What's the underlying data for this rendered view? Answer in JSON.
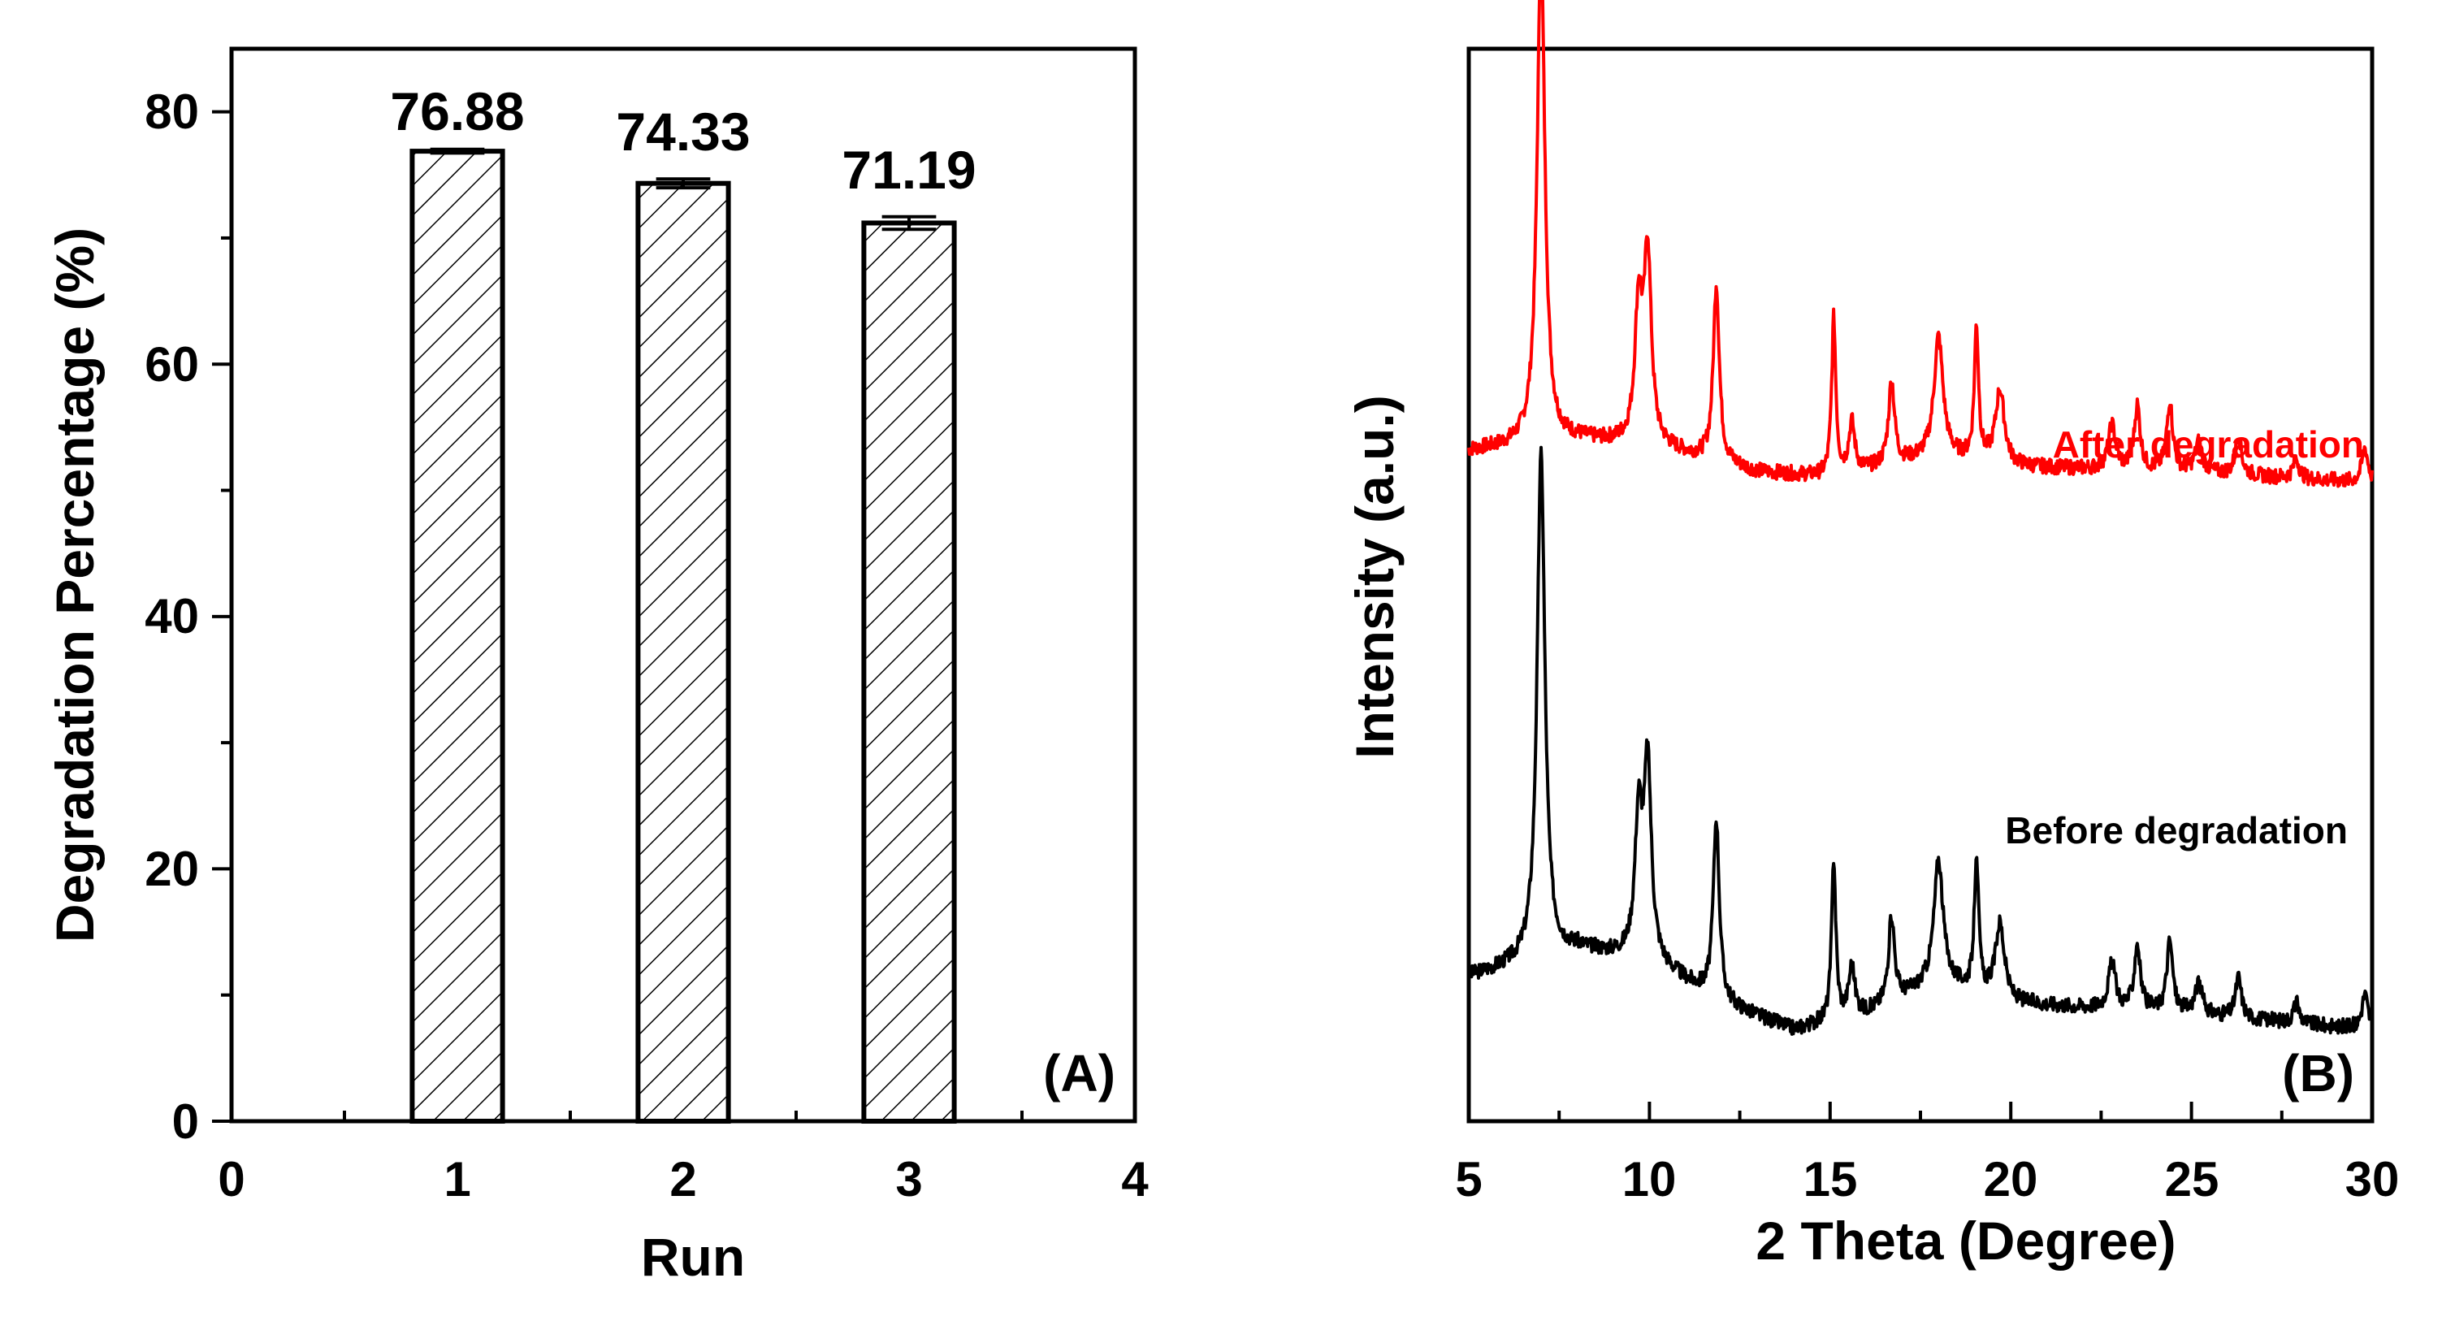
{
  "chart_data": [
    {
      "type": "bar",
      "panel_label": "(A)",
      "xlabel": "Run",
      "ylabel": "Degradation Percentage (%)",
      "xlim": [
        0,
        4
      ],
      "ylim": [
        0,
        85
      ],
      "x_ticks": [
        "0",
        "1",
        "2",
        "3",
        "4"
      ],
      "y_ticks": [
        "0",
        "20",
        "40",
        "60",
        "80"
      ],
      "categories": [
        1,
        2,
        3
      ],
      "values": [
        76.88,
        74.33,
        71.19
      ],
      "errors": [
        0.15,
        0.35,
        0.5
      ],
      "value_labels": [
        "76.88",
        "74.33",
        "71.19"
      ],
      "bar_fill": "hatched",
      "grid": false
    },
    {
      "type": "line",
      "panel_label": "(B)",
      "xlabel": "2 Theta (Degree)",
      "ylabel": "Intensity (a.u.)",
      "xlim": [
        5,
        30
      ],
      "ylim": [
        0,
        100
      ],
      "x_ticks": [
        "5",
        "10",
        "15",
        "20",
        "25",
        "30"
      ],
      "y_ticks_shown": false,
      "grid": false,
      "peaks": [
        {
          "x": 7.0,
          "h": 1.0,
          "w": 0.13
        },
        {
          "x": 9.7,
          "h": 0.27,
          "w": 0.12
        },
        {
          "x": 9.95,
          "h": 0.38,
          "w": 0.12
        },
        {
          "x": 11.85,
          "h": 0.36,
          "w": 0.1
        },
        {
          "x": 15.1,
          "h": 0.32,
          "w": 0.07
        },
        {
          "x": 15.6,
          "h": 0.1,
          "w": 0.1
        },
        {
          "x": 16.7,
          "h": 0.17,
          "w": 0.1
        },
        {
          "x": 18.0,
          "h": 0.24,
          "w": 0.15
        },
        {
          "x": 19.05,
          "h": 0.27,
          "w": 0.07
        },
        {
          "x": 19.7,
          "h": 0.15,
          "w": 0.15
        },
        {
          "x": 22.8,
          "h": 0.09,
          "w": 0.12
        },
        {
          "x": 23.5,
          "h": 0.13,
          "w": 0.1
        },
        {
          "x": 24.4,
          "h": 0.14,
          "w": 0.1
        },
        {
          "x": 25.2,
          "h": 0.06,
          "w": 0.12
        },
        {
          "x": 26.3,
          "h": 0.08,
          "w": 0.1
        },
        {
          "x": 27.9,
          "h": 0.04,
          "w": 0.1
        },
        {
          "x": 29.8,
          "h": 0.07,
          "w": 0.1
        }
      ],
      "series": [
        {
          "name": "After degradation",
          "color": "#ff0000",
          "baseline": [
            [
              5,
              62.5
            ],
            [
              8,
              63.5
            ],
            [
              10,
              63.0
            ],
            [
              13,
              60.5
            ],
            [
              15,
              60.0
            ],
            [
              18,
              62.0
            ],
            [
              20,
              61.0
            ],
            [
              25,
              60.5
            ],
            [
              30,
              59.5
            ]
          ],
          "peak_scale": 46,
          "seed": 7
        },
        {
          "name": "Before degradation",
          "color": "#000000",
          "baseline": [
            [
              5,
              13.5
            ],
            [
              8,
              16.0
            ],
            [
              10,
              15.0
            ],
            [
              12,
              11.0
            ],
            [
              14,
              8.5
            ],
            [
              16,
              10.0
            ],
            [
              18,
              13.0
            ],
            [
              20,
              11.0
            ],
            [
              25,
              10.0
            ],
            [
              30,
              8.5
            ]
          ],
          "peak_scale": 47,
          "seed": 3
        }
      ]
    }
  ]
}
